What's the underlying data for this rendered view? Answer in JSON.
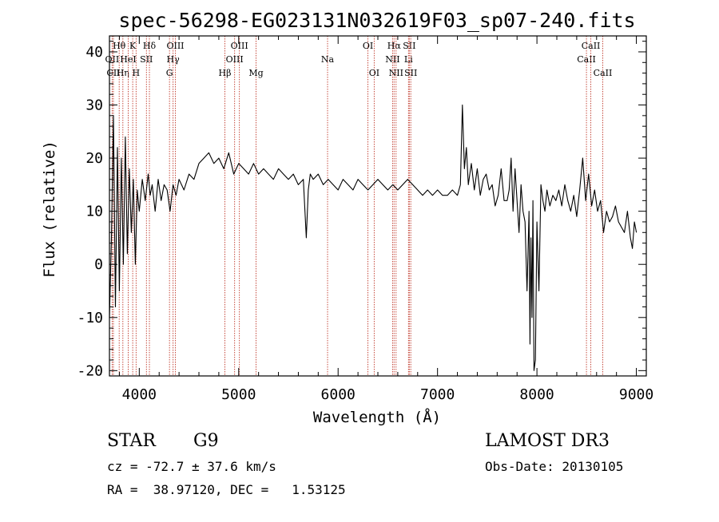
{
  "chart_data": {
    "type": "line",
    "title": "spec-56298-EG023131N032619F03_sp07-240.fits",
    "xlabel": "Wavelength (Å)",
    "ylabel": "Flux (relative)",
    "xlim": [
      3700,
      9100
    ],
    "ylim": [
      -21,
      43
    ],
    "xticks": [
      4000,
      5000,
      6000,
      7000,
      8000,
      9000
    ],
    "yticks": [
      -20,
      -10,
      0,
      10,
      20,
      30,
      40
    ],
    "series": [
      {
        "name": "flux",
        "x": [
          3700,
          3720,
          3740,
          3760,
          3780,
          3800,
          3820,
          3840,
          3860,
          3880,
          3900,
          3920,
          3940,
          3960,
          3980,
          4000,
          4030,
          4060,
          4090,
          4110,
          4130,
          4160,
          4190,
          4220,
          4250,
          4280,
          4310,
          4340,
          4370,
          4400,
          4450,
          4500,
          4550,
          4600,
          4650,
          4700,
          4750,
          4800,
          4850,
          4900,
          4950,
          5000,
          5050,
          5100,
          5150,
          5200,
          5250,
          5300,
          5350,
          5400,
          5450,
          5500,
          5550,
          5600,
          5650,
          5680,
          5700,
          5720,
          5750,
          5800,
          5850,
          5900,
          5950,
          6000,
          6050,
          6100,
          6150,
          6200,
          6250,
          6300,
          6350,
          6400,
          6450,
          6500,
          6550,
          6600,
          6650,
          6700,
          6750,
          6800,
          6850,
          6900,
          6950,
          7000,
          7050,
          7100,
          7150,
          7200,
          7230,
          7250,
          7270,
          7290,
          7310,
          7340,
          7370,
          7400,
          7430,
          7460,
          7490,
          7520,
          7550,
          7580,
          7610,
          7640,
          7670,
          7700,
          7720,
          7740,
          7760,
          7780,
          7800,
          7820,
          7840,
          7860,
          7880,
          7900,
          7910,
          7920,
          7930,
          7940,
          7950,
          7960,
          7970,
          7985,
          8000,
          8020,
          8040,
          8060,
          8080,
          8100,
          8130,
          8160,
          8190,
          8220,
          8250,
          8280,
          8310,
          8340,
          8370,
          8400,
          8430,
          8460,
          8490,
          8520,
          8550,
          8580,
          8610,
          8640,
          8670,
          8700,
          8730,
          8760,
          8790,
          8820,
          8850,
          8880,
          8910,
          8940,
          8960,
          8980,
          9000
        ],
        "values": [
          -10,
          5,
          28,
          -8,
          22,
          -5,
          20,
          0,
          24,
          2,
          18,
          6,
          16,
          0,
          14,
          10,
          16,
          12,
          17,
          13,
          15,
          10,
          16,
          12,
          15,
          14,
          10,
          15,
          13,
          16,
          14,
          17,
          16,
          19,
          20,
          21,
          19,
          20,
          18,
          21,
          17,
          19,
          18,
          17,
          19,
          17,
          18,
          17,
          16,
          18,
          17,
          16,
          17,
          15,
          16,
          5,
          14,
          17,
          16,
          17,
          15,
          16,
          15,
          14,
          16,
          15,
          14,
          16,
          15,
          14,
          15,
          16,
          15,
          14,
          15,
          14,
          15,
          16,
          15,
          14,
          13,
          14,
          13,
          14,
          13,
          13,
          14,
          13,
          15,
          30,
          18,
          22,
          15,
          19,
          14,
          18,
          13,
          16,
          17,
          14,
          15,
          11,
          13,
          18,
          12,
          12,
          14,
          20,
          10,
          18,
          12,
          6,
          15,
          10,
          8,
          -5,
          2,
          10,
          -15,
          5,
          -10,
          12,
          -20,
          -18,
          8,
          -5,
          15,
          12,
          10,
          14,
          11,
          13,
          12,
          14,
          11,
          15,
          12,
          10,
          13,
          9,
          14,
          20,
          12,
          17,
          11,
          14,
          10,
          12,
          6,
          10,
          8,
          9,
          11,
          8,
          7,
          6,
          10,
          5,
          3,
          8,
          6
        ]
      }
    ],
    "lines": [
      {
        "name": "H-theta",
        "label": "Hθ",
        "x": 3798,
        "row": 1
      },
      {
        "name": "OII",
        "label": "OII",
        "x": 3727,
        "row": 2
      },
      {
        "name": "CII-4267",
        "label": "CII",
        "x": 3740,
        "row": 3
      },
      {
        "name": "H-eta",
        "label": "Hη",
        "x": 3835,
        "row": 3
      },
      {
        "name": "HeI",
        "label": "HeI",
        "x": 3889,
        "row": 2
      },
      {
        "name": "K",
        "label": "K",
        "x": 3934,
        "row": 1
      },
      {
        "name": "H",
        "label": "H",
        "x": 3968,
        "row": 3
      },
      {
        "name": "SII-4072",
        "label": "SII",
        "x": 4072,
        "row": 2
      },
      {
        "name": "H-delta",
        "label": "Hδ",
        "x": 4102,
        "row": 1
      },
      {
        "name": "G",
        "label": "G",
        "x": 4304,
        "row": 3
      },
      {
        "name": "H-gamma",
        "label": "Hγ",
        "x": 4340,
        "row": 2
      },
      {
        "name": "OIII-4363",
        "label": "OIII",
        "x": 4363,
        "row": 1
      },
      {
        "name": "H-beta",
        "label": "Hβ",
        "x": 4861,
        "row": 3
      },
      {
        "name": "OIII-4959",
        "label": "OIII",
        "x": 4959,
        "row": 2
      },
      {
        "name": "OIII-5007",
        "label": "OIII",
        "x": 5007,
        "row": 1
      },
      {
        "name": "Mg",
        "label": "Mg",
        "x": 5175,
        "row": 3
      },
      {
        "name": "Na",
        "label": "Na",
        "x": 5894,
        "row": 2
      },
      {
        "name": "OI-6300",
        "label": "OI",
        "x": 6300,
        "row": 1
      },
      {
        "name": "OI-6363",
        "label": "OI",
        "x": 6363,
        "row": 3
      },
      {
        "name": "NII-6548",
        "label": "NII",
        "x": 6548,
        "row": 2
      },
      {
        "name": "H-alpha",
        "label": "Hα",
        "x": 6563,
        "row": 1
      },
      {
        "name": "NII-6583",
        "label": "NII",
        "x": 6583,
        "row": 3
      },
      {
        "name": "SII-6716",
        "label": "SII",
        "x": 6716,
        "row": 1
      },
      {
        "name": "Li",
        "label": "Li",
        "x": 6708,
        "row": 2
      },
      {
        "name": "SII-6731",
        "label": "SII",
        "x": 6731,
        "row": 3
      },
      {
        "name": "CaII-8498",
        "label": "CaII",
        "x": 8498,
        "row": 2
      },
      {
        "name": "CaII-8542",
        "label": "CaII",
        "x": 8542,
        "row": 1
      },
      {
        "name": "CaII-8662",
        "label": "CaII",
        "x": 8662,
        "row": 3
      }
    ],
    "colors": {
      "flux": "#000000",
      "lines": "#c0392b"
    }
  },
  "info": {
    "class": "STAR",
    "subclass": "G9",
    "survey": "LAMOST DR3",
    "cz": "cz = -72.7 ± 37.6 km/s",
    "obsdate": "Obs-Date: 20130105",
    "coords": "RA =  38.97120, DEC =   1.53125"
  }
}
